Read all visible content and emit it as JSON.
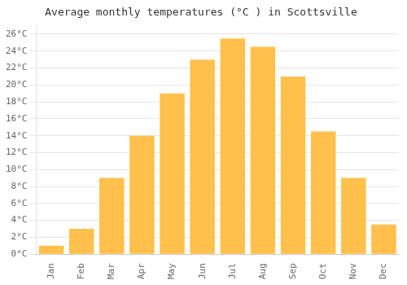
{
  "chart_data": {
    "type": "bar",
    "title": "Average monthly temperatures (°C ) in Scottsville",
    "categories": [
      "Jan",
      "Feb",
      "Mar",
      "Apr",
      "May",
      "Jun",
      "Jul",
      "Aug",
      "Sep",
      "Oct",
      "Nov",
      "Dec"
    ],
    "values": [
      1,
      3,
      9,
      14,
      19,
      23,
      25.5,
      24.5,
      21,
      14.5,
      9,
      3.5
    ],
    "color": "#FFC04C",
    "ylim": [
      0,
      27
    ],
    "yticks": [
      {
        "value": 0,
        "label": "0°C"
      },
      {
        "value": 2,
        "label": "2°C"
      },
      {
        "value": 4,
        "label": "4°C"
      },
      {
        "value": 6,
        "label": "6°C"
      },
      {
        "value": 8,
        "label": "8°C"
      },
      {
        "value": 10,
        "label": "10°C"
      },
      {
        "value": 12,
        "label": "12°C"
      },
      {
        "value": 14,
        "label": "14°C"
      },
      {
        "value": 16,
        "label": "16°C"
      },
      {
        "value": 18,
        "label": "18°C"
      },
      {
        "value": 20,
        "label": "20°C"
      },
      {
        "value": 22,
        "label": "22°C"
      },
      {
        "value": 24,
        "label": "24°C"
      },
      {
        "value": 26,
        "label": "26°C"
      }
    ],
    "grid": true
  }
}
